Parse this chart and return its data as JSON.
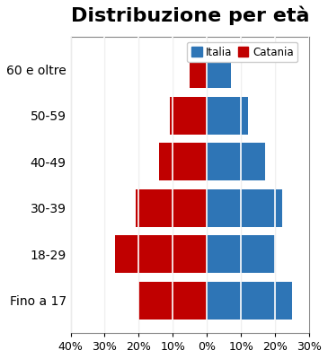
{
  "title": "Distribuzione per età",
  "categories": [
    "Fino a 17",
    "18-29",
    "30-39",
    "40-49",
    "50-59",
    "60 e oltre"
  ],
  "italia": [
    25,
    20,
    22,
    17,
    12,
    7
  ],
  "catania": [
    20,
    27,
    21,
    14,
    11,
    5
  ],
  "italia_color": "#2E75B6",
  "catania_color": "#C00000",
  "xlim": [
    -40,
    30
  ],
  "xticks": [
    -40,
    -30,
    -20,
    -10,
    0,
    10,
    20,
    30
  ],
  "xtick_labels": [
    "40%",
    "30%",
    "20%",
    "10%",
    "0%",
    "10%",
    "20%",
    "30%"
  ],
  "grid_color": "#FFFFFF",
  "bg_color": "#FFFFFF",
  "bar_height": 0.82,
  "legend_labels": [
    "Italia",
    "Catania"
  ],
  "legend_colors": [
    "#2E75B6",
    "#C00000"
  ],
  "title_fontsize": 16,
  "tick_fontsize": 9,
  "ytick_fontsize": 10
}
